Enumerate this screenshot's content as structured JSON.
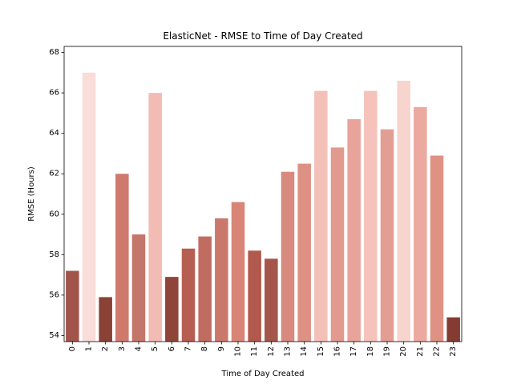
{
  "chart_data": {
    "type": "bar",
    "title": "ElasticNet - RMSE to Time of Day Created",
    "xlabel": "Time of Day Created",
    "ylabel": "RMSE (Hours)",
    "ylim": [
      53.7,
      68.3
    ],
    "yticks": [
      54,
      56,
      58,
      60,
      62,
      64,
      66,
      68
    ],
    "grid": false,
    "categories": [
      "0",
      "1",
      "2",
      "3",
      "4",
      "5",
      "6",
      "7",
      "8",
      "9",
      "10",
      "11",
      "12",
      "13",
      "14",
      "15",
      "16",
      "17",
      "18",
      "19",
      "20",
      "21",
      "22",
      "23"
    ],
    "values": [
      57.2,
      67.0,
      55.9,
      62.0,
      59.0,
      66.0,
      56.9,
      58.3,
      58.9,
      59.8,
      60.6,
      58.2,
      57.8,
      62.1,
      62.5,
      66.1,
      63.3,
      64.7,
      66.1,
      64.2,
      66.6,
      65.3,
      62.9,
      54.9
    ],
    "colors": [
      "#a3544a",
      "#f9ddd8",
      "#8a4136",
      "#d07a6e",
      "#c5766a",
      "#f2bbb3",
      "#8f453a",
      "#b65e52",
      "#c16c60",
      "#cb786c",
      "#d88578",
      "#b2594e",
      "#a6554a",
      "#d98a7f",
      "#dc9184",
      "#f4c1b9",
      "#e29a8e",
      "#e8a39a",
      "#f5c3bb",
      "#e39e94",
      "#f8d4ce",
      "#eca99f",
      "#df9183",
      "#843c32"
    ]
  }
}
